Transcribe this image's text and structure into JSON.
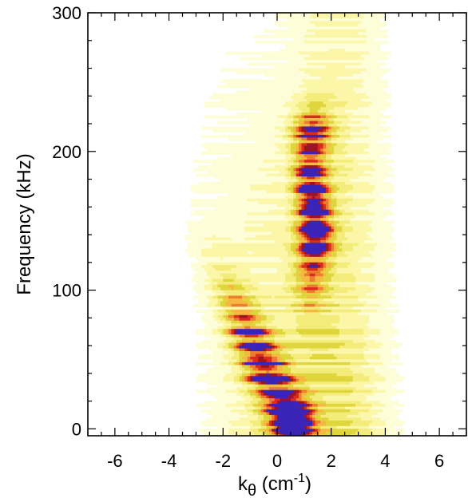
{
  "chart_data": {
    "type": "heatmap",
    "title": "",
    "xlabel": {
      "base": "k",
      "sub": "θ",
      "rest": " (cm",
      "sup": "-1",
      "close": ")"
    },
    "ylabel": "Frequency (kHz)",
    "xlim": [
      -7,
      7
    ],
    "ylim": [
      -5,
      300
    ],
    "x_ticks": [
      -6,
      -4,
      -2,
      0,
      2,
      4,
      6
    ],
    "x_tick_labels": [
      "-6",
      "-4",
      "-2",
      "0",
      "2",
      "4",
      "6"
    ],
    "y_ticks": [
      0,
      100,
      200,
      300
    ],
    "y_tick_labels": [
      "0",
      "100",
      "200",
      "300"
    ],
    "colormap": [
      "#ffffff",
      "#fdfdd8",
      "#fbf6a8",
      "#f3ec7a",
      "#ded63c",
      "#f6b843",
      "#ec7d2e",
      "#d82d1d",
      "#9b1522",
      "#3a25b8"
    ],
    "features": [
      {
        "name": "upper branch",
        "k_center": 1.3,
        "f_range": [
          95,
          225
        ],
        "peak_level": 9
      },
      {
        "name": "lower branch",
        "k_center_at_f0": 0.5,
        "k_center_at_f90": -1.5,
        "f_range": [
          0,
          110
        ],
        "peak_level": 8
      },
      {
        "name": "background",
        "description": "broad low-level spectrum extending to 300 kHz"
      }
    ],
    "grid": false,
    "legend": "none"
  }
}
